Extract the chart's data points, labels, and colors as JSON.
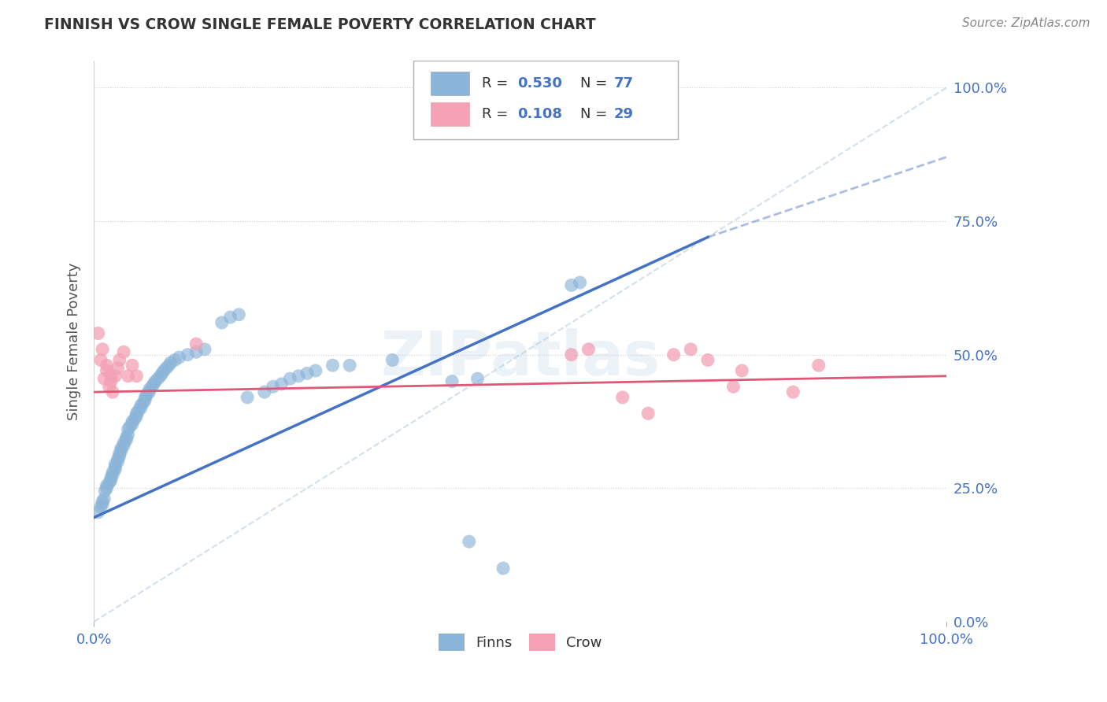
{
  "title": "FINNISH VS CROW SINGLE FEMALE POVERTY CORRELATION CHART",
  "source": "Source: ZipAtlas.com",
  "ylabel": "Single Female Poverty",
  "watermark": "ZIPatlas",
  "blue_color": "#8ab4d8",
  "pink_color": "#f4a0b5",
  "trend_blue": "#4472c4",
  "trend_pink": "#e05878",
  "ref_line_color": "#b0c8dc",
  "blue_scatter": [
    [
      0.005,
      0.205
    ],
    [
      0.008,
      0.215
    ],
    [
      0.01,
      0.22
    ],
    [
      0.01,
      0.225
    ],
    [
      0.012,
      0.23
    ],
    [
      0.013,
      0.245
    ],
    [
      0.015,
      0.25
    ],
    [
      0.015,
      0.255
    ],
    [
      0.018,
      0.26
    ],
    [
      0.02,
      0.265
    ],
    [
      0.02,
      0.27
    ],
    [
      0.022,
      0.275
    ],
    [
      0.022,
      0.28
    ],
    [
      0.025,
      0.285
    ],
    [
      0.025,
      0.29
    ],
    [
      0.025,
      0.295
    ],
    [
      0.028,
      0.3
    ],
    [
      0.028,
      0.305
    ],
    [
      0.03,
      0.31
    ],
    [
      0.03,
      0.315
    ],
    [
      0.032,
      0.32
    ],
    [
      0.032,
      0.325
    ],
    [
      0.035,
      0.33
    ],
    [
      0.035,
      0.335
    ],
    [
      0.038,
      0.34
    ],
    [
      0.038,
      0.345
    ],
    [
      0.04,
      0.35
    ],
    [
      0.04,
      0.36
    ],
    [
      0.042,
      0.365
    ],
    [
      0.045,
      0.37
    ],
    [
      0.045,
      0.375
    ],
    [
      0.048,
      0.38
    ],
    [
      0.05,
      0.385
    ],
    [
      0.05,
      0.39
    ],
    [
      0.052,
      0.395
    ],
    [
      0.055,
      0.4
    ],
    [
      0.055,
      0.405
    ],
    [
      0.058,
      0.41
    ],
    [
      0.06,
      0.415
    ],
    [
      0.06,
      0.42
    ],
    [
      0.062,
      0.425
    ],
    [
      0.065,
      0.43
    ],
    [
      0.065,
      0.435
    ],
    [
      0.068,
      0.44
    ],
    [
      0.07,
      0.445
    ],
    [
      0.072,
      0.45
    ],
    [
      0.075,
      0.455
    ],
    [
      0.078,
      0.46
    ],
    [
      0.08,
      0.465
    ],
    [
      0.082,
      0.47
    ],
    [
      0.085,
      0.475
    ],
    [
      0.088,
      0.48
    ],
    [
      0.09,
      0.485
    ],
    [
      0.095,
      0.49
    ],
    [
      0.1,
      0.495
    ],
    [
      0.11,
      0.5
    ],
    [
      0.12,
      0.505
    ],
    [
      0.13,
      0.51
    ],
    [
      0.15,
      0.56
    ],
    [
      0.16,
      0.57
    ],
    [
      0.17,
      0.575
    ],
    [
      0.18,
      0.42
    ],
    [
      0.2,
      0.43
    ],
    [
      0.21,
      0.44
    ],
    [
      0.22,
      0.445
    ],
    [
      0.23,
      0.455
    ],
    [
      0.24,
      0.46
    ],
    [
      0.25,
      0.465
    ],
    [
      0.26,
      0.47
    ],
    [
      0.28,
      0.48
    ],
    [
      0.3,
      0.48
    ],
    [
      0.35,
      0.49
    ],
    [
      0.42,
      0.45
    ],
    [
      0.45,
      0.455
    ],
    [
      0.56,
      0.63
    ],
    [
      0.57,
      0.635
    ],
    [
      0.44,
      0.15
    ],
    [
      0.48,
      0.1
    ]
  ],
  "pink_scatter": [
    [
      0.005,
      0.54
    ],
    [
      0.008,
      0.49
    ],
    [
      0.01,
      0.51
    ],
    [
      0.012,
      0.455
    ],
    [
      0.015,
      0.47
    ],
    [
      0.015,
      0.48
    ],
    [
      0.018,
      0.44
    ],
    [
      0.02,
      0.45
    ],
    [
      0.02,
      0.46
    ],
    [
      0.022,
      0.43
    ],
    [
      0.025,
      0.46
    ],
    [
      0.028,
      0.475
    ],
    [
      0.03,
      0.49
    ],
    [
      0.035,
      0.505
    ],
    [
      0.04,
      0.46
    ],
    [
      0.045,
      0.48
    ],
    [
      0.05,
      0.46
    ],
    [
      0.12,
      0.52
    ],
    [
      0.56,
      0.5
    ],
    [
      0.58,
      0.51
    ],
    [
      0.62,
      0.42
    ],
    [
      0.65,
      0.39
    ],
    [
      0.68,
      0.5
    ],
    [
      0.7,
      0.51
    ],
    [
      0.72,
      0.49
    ],
    [
      0.75,
      0.44
    ],
    [
      0.76,
      0.47
    ],
    [
      0.82,
      0.43
    ],
    [
      0.85,
      0.48
    ]
  ],
  "blue_line_x0": 0.0,
  "blue_line_y0": 0.195,
  "blue_line_x1": 0.72,
  "blue_line_y1": 0.72,
  "blue_line_xdash": 1.0,
  "blue_line_ydash": 0.87,
  "pink_line_y0": 0.43,
  "pink_line_y1": 0.46,
  "xlim": [
    0.0,
    1.0
  ],
  "ylim": [
    0.0,
    1.05
  ],
  "yticks": [
    0.0,
    0.25,
    0.5,
    0.75,
    1.0
  ],
  "xticks": [
    0.0,
    1.0
  ],
  "grid_color": "#d0d0d0",
  "grid_h_color": "#d0d0d0",
  "background_color": "#ffffff",
  "title_color": "#333333",
  "axis_label_color": "#555555",
  "tick_label_color": "#4472c4",
  "source_color": "#888888"
}
